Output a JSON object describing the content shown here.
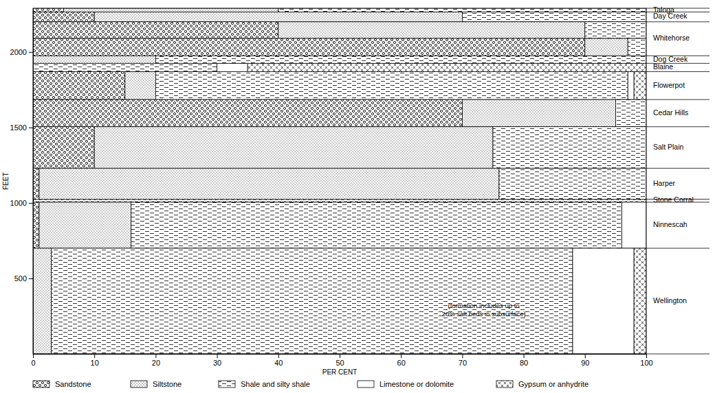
{
  "chart_data": {
    "type": "bar",
    "orientation": "horizontal",
    "stacked": true,
    "xlabel": "PER CENT",
    "ylabel": "FEET",
    "categories": [
      "Taloga",
      "Day Creek",
      "Whitehorse",
      null,
      "Dog Creek",
      "Blaine",
      "Flowerpot",
      "Cedar Hills",
      "Salt Plain",
      "Harper",
      "Stone Corral",
      "Ninnescah",
      "Wellington"
    ],
    "top": [
      2290,
      2265,
      2200,
      2090,
      1975,
      1925,
      1870,
      1685,
      1505,
      1230,
      1025,
      1005,
      700
    ],
    "base": [
      2265,
      2200,
      2090,
      1975,
      1925,
      1870,
      1685,
      1505,
      1230,
      1025,
      1005,
      700,
      0
    ],
    "series": [
      {
        "name": "Sandstone",
        "values": [
          5,
          10,
          40,
          90,
          0,
          0,
          15,
          70,
          10,
          1,
          0,
          1,
          0
        ]
      },
      {
        "name": "Siltstone",
        "values": [
          35,
          60,
          50,
          7,
          20,
          0,
          5,
          25,
          65,
          75,
          0,
          15,
          3
        ]
      },
      {
        "name": "Shale and silty shale",
        "values": [
          60,
          30,
          10,
          3,
          80,
          30,
          77,
          5,
          25,
          24,
          0,
          80,
          85
        ]
      },
      {
        "name": "Limestone or dolomite",
        "values": [
          0,
          0,
          0,
          0,
          0,
          5,
          1,
          0,
          0,
          0,
          0,
          4,
          10
        ]
      },
      {
        "name": "Gypsum or anhydrite",
        "values": [
          0,
          0,
          0,
          0,
          0,
          65,
          2,
          0,
          0,
          0,
          100,
          0,
          2
        ]
      }
    ],
    "annotations": [
      "(formation includes up to",
      "20% salt beds in subsurface)"
    ],
    "xlim": [
      0,
      100
    ],
    "xticks": [
      0,
      10,
      20,
      30,
      40,
      50,
      60,
      70,
      80,
      90,
      100
    ],
    "ylim": [
      0,
      2290
    ],
    "yticks": [
      500,
      1000,
      1500,
      2000
    ],
    "legend": "bottom"
  }
}
